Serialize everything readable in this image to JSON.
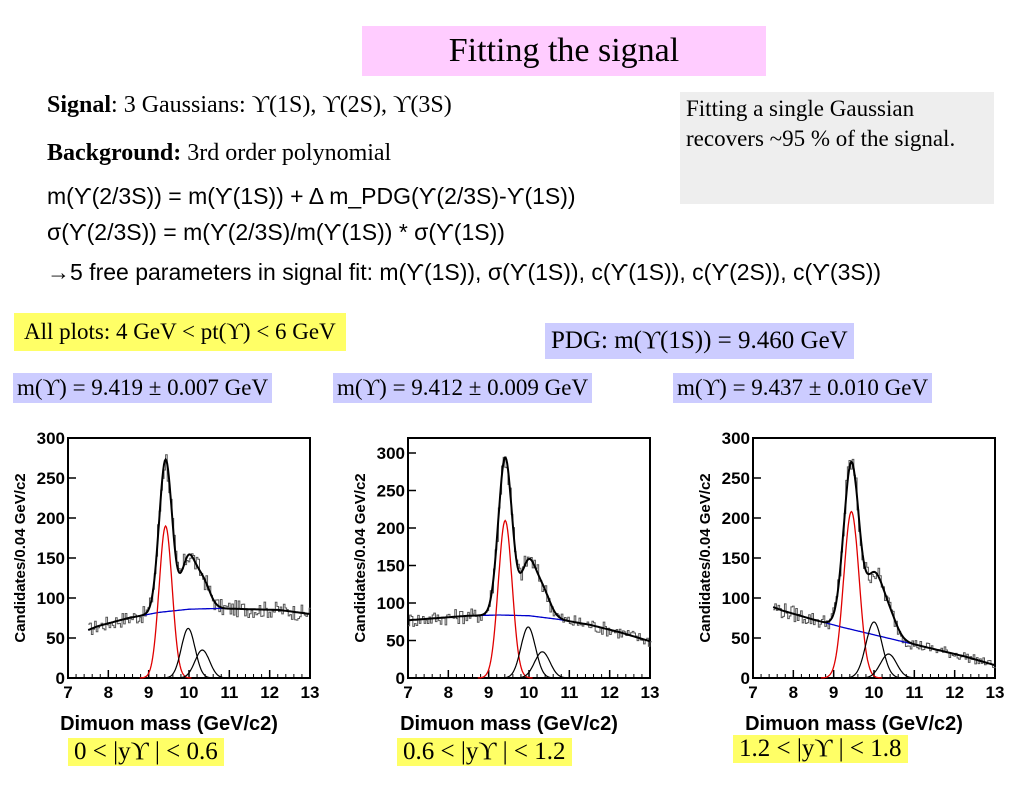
{
  "title": "Fitting the signal",
  "signal": {
    "label": "Signal",
    "text": ": 3 Gaussians: ϒ(1S), ϒ(2S),  ϒ(3S)"
  },
  "background": {
    "label": "Background:",
    "text": " 3rd order polynomial"
  },
  "eq1": "m(ϒ(2/3S)) = m(ϒ(1S)) + Δ m_PDG(ϒ(2/3S)-ϒ(1S))",
  "eq2": "σ(ϒ(2/3S)) = m(ϒ(2/3S)/m(ϒ(1S)) * σ(ϒ(1S))",
  "eq3": "→5 free parameters in signal fit: m(ϒ(1S)), σ(ϒ(1S)), c(ϒ(1S)), c(ϒ(2S)), c(ϒ(3S))",
  "note": "Fitting a single Gaussian recovers ~95 % of the signal.",
  "all_plots": "All plots: 4 GeV < pt(ϒ)  < 6 GeV",
  "pdg": "PDG: m(ϒ(1S)) = 9.460 GeV",
  "colors": {
    "title_bg": "#ffccff",
    "yellow": "#ffff66",
    "lavender": "#ccccff",
    "note_bg": "#eeeeee",
    "signal_curve": "#e00000",
    "background_curve": "#0000cc",
    "total_curve": "#000000"
  },
  "chart_data": [
    {
      "type": "line",
      "mass_result": "m(ϒ) = 9.419 ± 0.007 GeV",
      "rapidity_label": "0 < |yϒ | < 0.6",
      "xlabel": "Dimuon mass (GeV/c2)",
      "ylabel": "Candidates/0.04 GeV/c2",
      "xlim": [
        7,
        13
      ],
      "ylim": [
        0,
        300
      ],
      "xticks": [
        "7",
        "8",
        "9",
        "10",
        "11",
        "12",
        "13"
      ],
      "yticks": [
        "0",
        "50",
        "100",
        "150",
        "200",
        "250",
        "300"
      ],
      "fit_range": [
        7.5,
        13
      ],
      "components": {
        "ups1s": {
          "mean": 9.42,
          "sigma": 0.16,
          "amp": 190
        },
        "ups2s": {
          "mean": 9.98,
          "sigma": 0.17,
          "amp": 62
        },
        "ups3s": {
          "mean": 10.33,
          "sigma": 0.18,
          "amp": 35
        },
        "background": [
          50,
          65,
          75,
          82,
          86,
          87,
          86,
          85,
          80
        ]
      }
    },
    {
      "type": "line",
      "mass_result": "m(ϒ) = 9.412 ±  0.009 GeV",
      "rapidity_label": "0.6 < |yϒ | < 1.2",
      "xlabel": "Dimuon mass (GeV/c2)",
      "ylabel": "Candidates/0.04 GeV/c2",
      "xlim": [
        7,
        13
      ],
      "ylim": [
        0,
        320
      ],
      "xticks": [
        "7",
        "8",
        "9",
        "10",
        "11",
        "12",
        "13"
      ],
      "yticks": [
        "0",
        "50",
        "100",
        "150",
        "200",
        "250",
        "300"
      ],
      "fit_range": [
        7,
        13
      ],
      "components": {
        "ups1s": {
          "mean": 9.41,
          "sigma": 0.17,
          "amp": 210
        },
        "ups2s": {
          "mean": 9.98,
          "sigma": 0.18,
          "amp": 68
        },
        "ups3s": {
          "mean": 10.33,
          "sigma": 0.19,
          "amp": 35
        },
        "background": [
          77,
          80,
          83,
          84,
          83,
          78,
          71,
          61,
          49
        ]
      }
    },
    {
      "type": "line",
      "mass_result": "m(ϒ) = 9.437 ± 0.010 GeV",
      "rapidity_label": "1.2 < |yϒ | < 1.8",
      "xlabel": "Dimuon mass (GeV/c2)",
      "ylabel": "Candidates/0.04 GeV/c2",
      "xlim": [
        7,
        13
      ],
      "ylim": [
        0,
        300
      ],
      "xticks": [
        "7",
        "8",
        "9",
        "10",
        "11",
        "12",
        "13"
      ],
      "yticks": [
        "0",
        "50",
        "100",
        "150",
        "200",
        "250",
        "300"
      ],
      "fit_range": [
        7.5,
        13
      ],
      "components": {
        "ups1s": {
          "mean": 9.44,
          "sigma": 0.19,
          "amp": 208
        },
        "ups2s": {
          "mean": 10.0,
          "sigma": 0.2,
          "amp": 70
        },
        "ups3s": {
          "mean": 10.36,
          "sigma": 0.2,
          "amp": 30
        },
        "background": [
          98,
          84,
          73,
          63,
          54,
          45,
          36,
          27,
          16
        ]
      }
    }
  ]
}
